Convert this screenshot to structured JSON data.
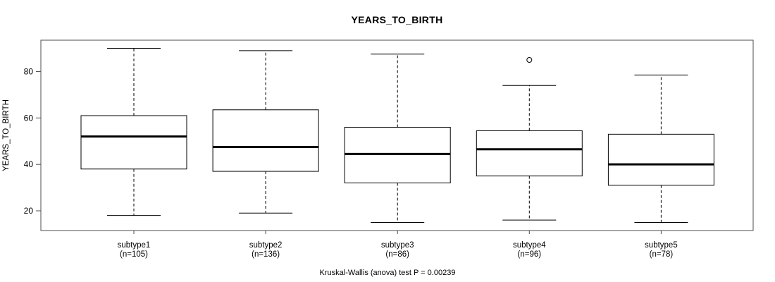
{
  "chart_data": {
    "type": "boxplot",
    "title": "YEARS_TO_BIRTH",
    "ylabel": "YEARS_TO_BIRTH",
    "caption": "Kruskal-Wallis (anova) test P = 0.00239",
    "yticks": [
      20,
      40,
      60,
      80
    ],
    "ylim": [
      11.5,
      93.5
    ],
    "grid": false,
    "groups": [
      {
        "label": "subtype1",
        "sublabel": "(n=105)",
        "n": 105,
        "whisker_low": 18,
        "q1": 38,
        "median": 52,
        "q3": 61,
        "whisker_high": 90,
        "outliers": []
      },
      {
        "label": "subtype2",
        "sublabel": "(n=136)",
        "n": 136,
        "whisker_low": 19,
        "q1": 37,
        "median": 47.5,
        "q3": 63.5,
        "whisker_high": 89,
        "outliers": []
      },
      {
        "label": "subtype3",
        "sublabel": "(n=86)",
        "n": 86,
        "whisker_low": 15,
        "q1": 32,
        "median": 44.5,
        "q3": 56,
        "whisker_high": 87.5,
        "outliers": []
      },
      {
        "label": "subtype4",
        "sublabel": "(n=96)",
        "n": 96,
        "whisker_low": 16,
        "q1": 35,
        "median": 46.5,
        "q3": 54.5,
        "whisker_high": 74,
        "outliers": [
          85
        ]
      },
      {
        "label": "subtype5",
        "sublabel": "(n=78)",
        "n": 78,
        "whisker_low": 15,
        "q1": 31,
        "median": 40,
        "q3": 53,
        "whisker_high": 78.5,
        "outliers": []
      }
    ],
    "colors": {
      "background": "#ffffff",
      "box_fill": "#ffffff",
      "line": "#000000",
      "frame": "#4d4d4d",
      "text": "#000000"
    }
  }
}
